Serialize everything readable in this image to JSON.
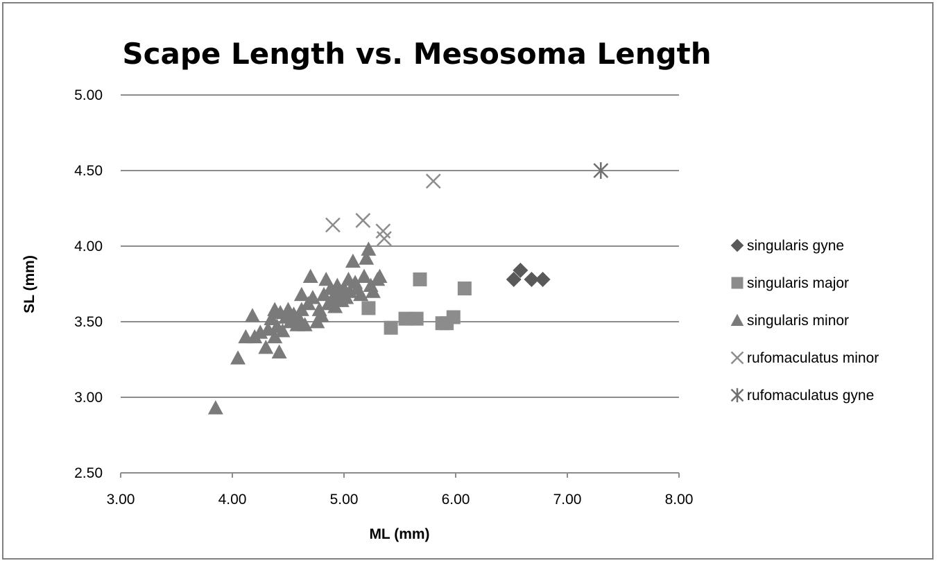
{
  "chart_data": {
    "type": "scatter",
    "title": "Scape Length vs. Mesosoma Length",
    "xlabel": "ML (mm)",
    "ylabel": "SL (mm)",
    "xlim": [
      3.0,
      8.0
    ],
    "ylim": [
      2.5,
      5.0
    ],
    "x_ticks": [
      "3.00",
      "4.00",
      "5.00",
      "6.00",
      "7.00",
      "8.00"
    ],
    "y_ticks": [
      "2.50",
      "3.00",
      "3.50",
      "4.00",
      "4.50",
      "5.00"
    ],
    "gridlines": "horizontal",
    "legend_position": "right",
    "series": [
      {
        "name": "singularis gyne",
        "marker": "diamond",
        "color": "#595959",
        "points": [
          [
            6.52,
            3.78
          ],
          [
            6.58,
            3.84
          ],
          [
            6.68,
            3.78
          ],
          [
            6.78,
            3.78
          ]
        ]
      },
      {
        "name": "singularis major",
        "marker": "square",
        "color": "#8c8c8c",
        "points": [
          [
            5.22,
            3.59
          ],
          [
            5.42,
            3.46
          ],
          [
            5.55,
            3.52
          ],
          [
            5.65,
            3.52
          ],
          [
            5.68,
            3.78
          ],
          [
            5.88,
            3.49
          ],
          [
            5.92,
            3.49
          ],
          [
            5.98,
            3.53
          ],
          [
            6.08,
            3.72
          ]
        ]
      },
      {
        "name": "singularis minor",
        "marker": "triangle",
        "color": "#7a7a7a",
        "points": [
          [
            3.85,
            2.93
          ],
          [
            4.05,
            3.26
          ],
          [
            4.12,
            3.4
          ],
          [
            4.18,
            3.54
          ],
          [
            4.2,
            3.4
          ],
          [
            4.25,
            3.43
          ],
          [
            4.3,
            3.33
          ],
          [
            4.32,
            3.45
          ],
          [
            4.35,
            3.52
          ],
          [
            4.38,
            3.58
          ],
          [
            4.38,
            3.4
          ],
          [
            4.4,
            3.47
          ],
          [
            4.42,
            3.3
          ],
          [
            4.43,
            3.56
          ],
          [
            4.45,
            3.44
          ],
          [
            4.48,
            3.53
          ],
          [
            4.5,
            3.58
          ],
          [
            4.52,
            3.5
          ],
          [
            4.55,
            3.55
          ],
          [
            4.58,
            3.48
          ],
          [
            4.6,
            3.52
          ],
          [
            4.62,
            3.58
          ],
          [
            4.62,
            3.68
          ],
          [
            4.65,
            3.48
          ],
          [
            4.68,
            3.62
          ],
          [
            4.7,
            3.8
          ],
          [
            4.72,
            3.66
          ],
          [
            4.76,
            3.5
          ],
          [
            4.78,
            3.58
          ],
          [
            4.8,
            3.54
          ],
          [
            4.82,
            3.68
          ],
          [
            4.84,
            3.78
          ],
          [
            4.86,
            3.62
          ],
          [
            4.88,
            3.72
          ],
          [
            4.9,
            3.66
          ],
          [
            4.92,
            3.6
          ],
          [
            4.94,
            3.74
          ],
          [
            4.96,
            3.68
          ],
          [
            4.98,
            3.64
          ],
          [
            5.0,
            3.72
          ],
          [
            5.02,
            3.66
          ],
          [
            5.04,
            3.78
          ],
          [
            5.05,
            3.7
          ],
          [
            5.08,
            3.9
          ],
          [
            5.1,
            3.76
          ],
          [
            5.12,
            3.72
          ],
          [
            5.15,
            3.68
          ],
          [
            5.18,
            3.8
          ],
          [
            5.2,
            3.92
          ],
          [
            5.22,
            3.98
          ],
          [
            5.24,
            3.74
          ],
          [
            5.26,
            3.7
          ],
          [
            5.3,
            3.78
          ],
          [
            5.32,
            3.8
          ]
        ]
      },
      {
        "name": "rufomaculatus minor",
        "marker": "x",
        "color": "#8c8c8c",
        "points": [
          [
            4.9,
            4.14
          ],
          [
            5.17,
            4.17
          ],
          [
            5.35,
            4.1
          ],
          [
            5.36,
            4.05
          ],
          [
            5.8,
            4.43
          ]
        ]
      },
      {
        "name": "rufomaculatus gyne",
        "marker": "star",
        "color": "#6e6e6e",
        "points": [
          [
            7.3,
            4.5
          ]
        ]
      }
    ]
  }
}
